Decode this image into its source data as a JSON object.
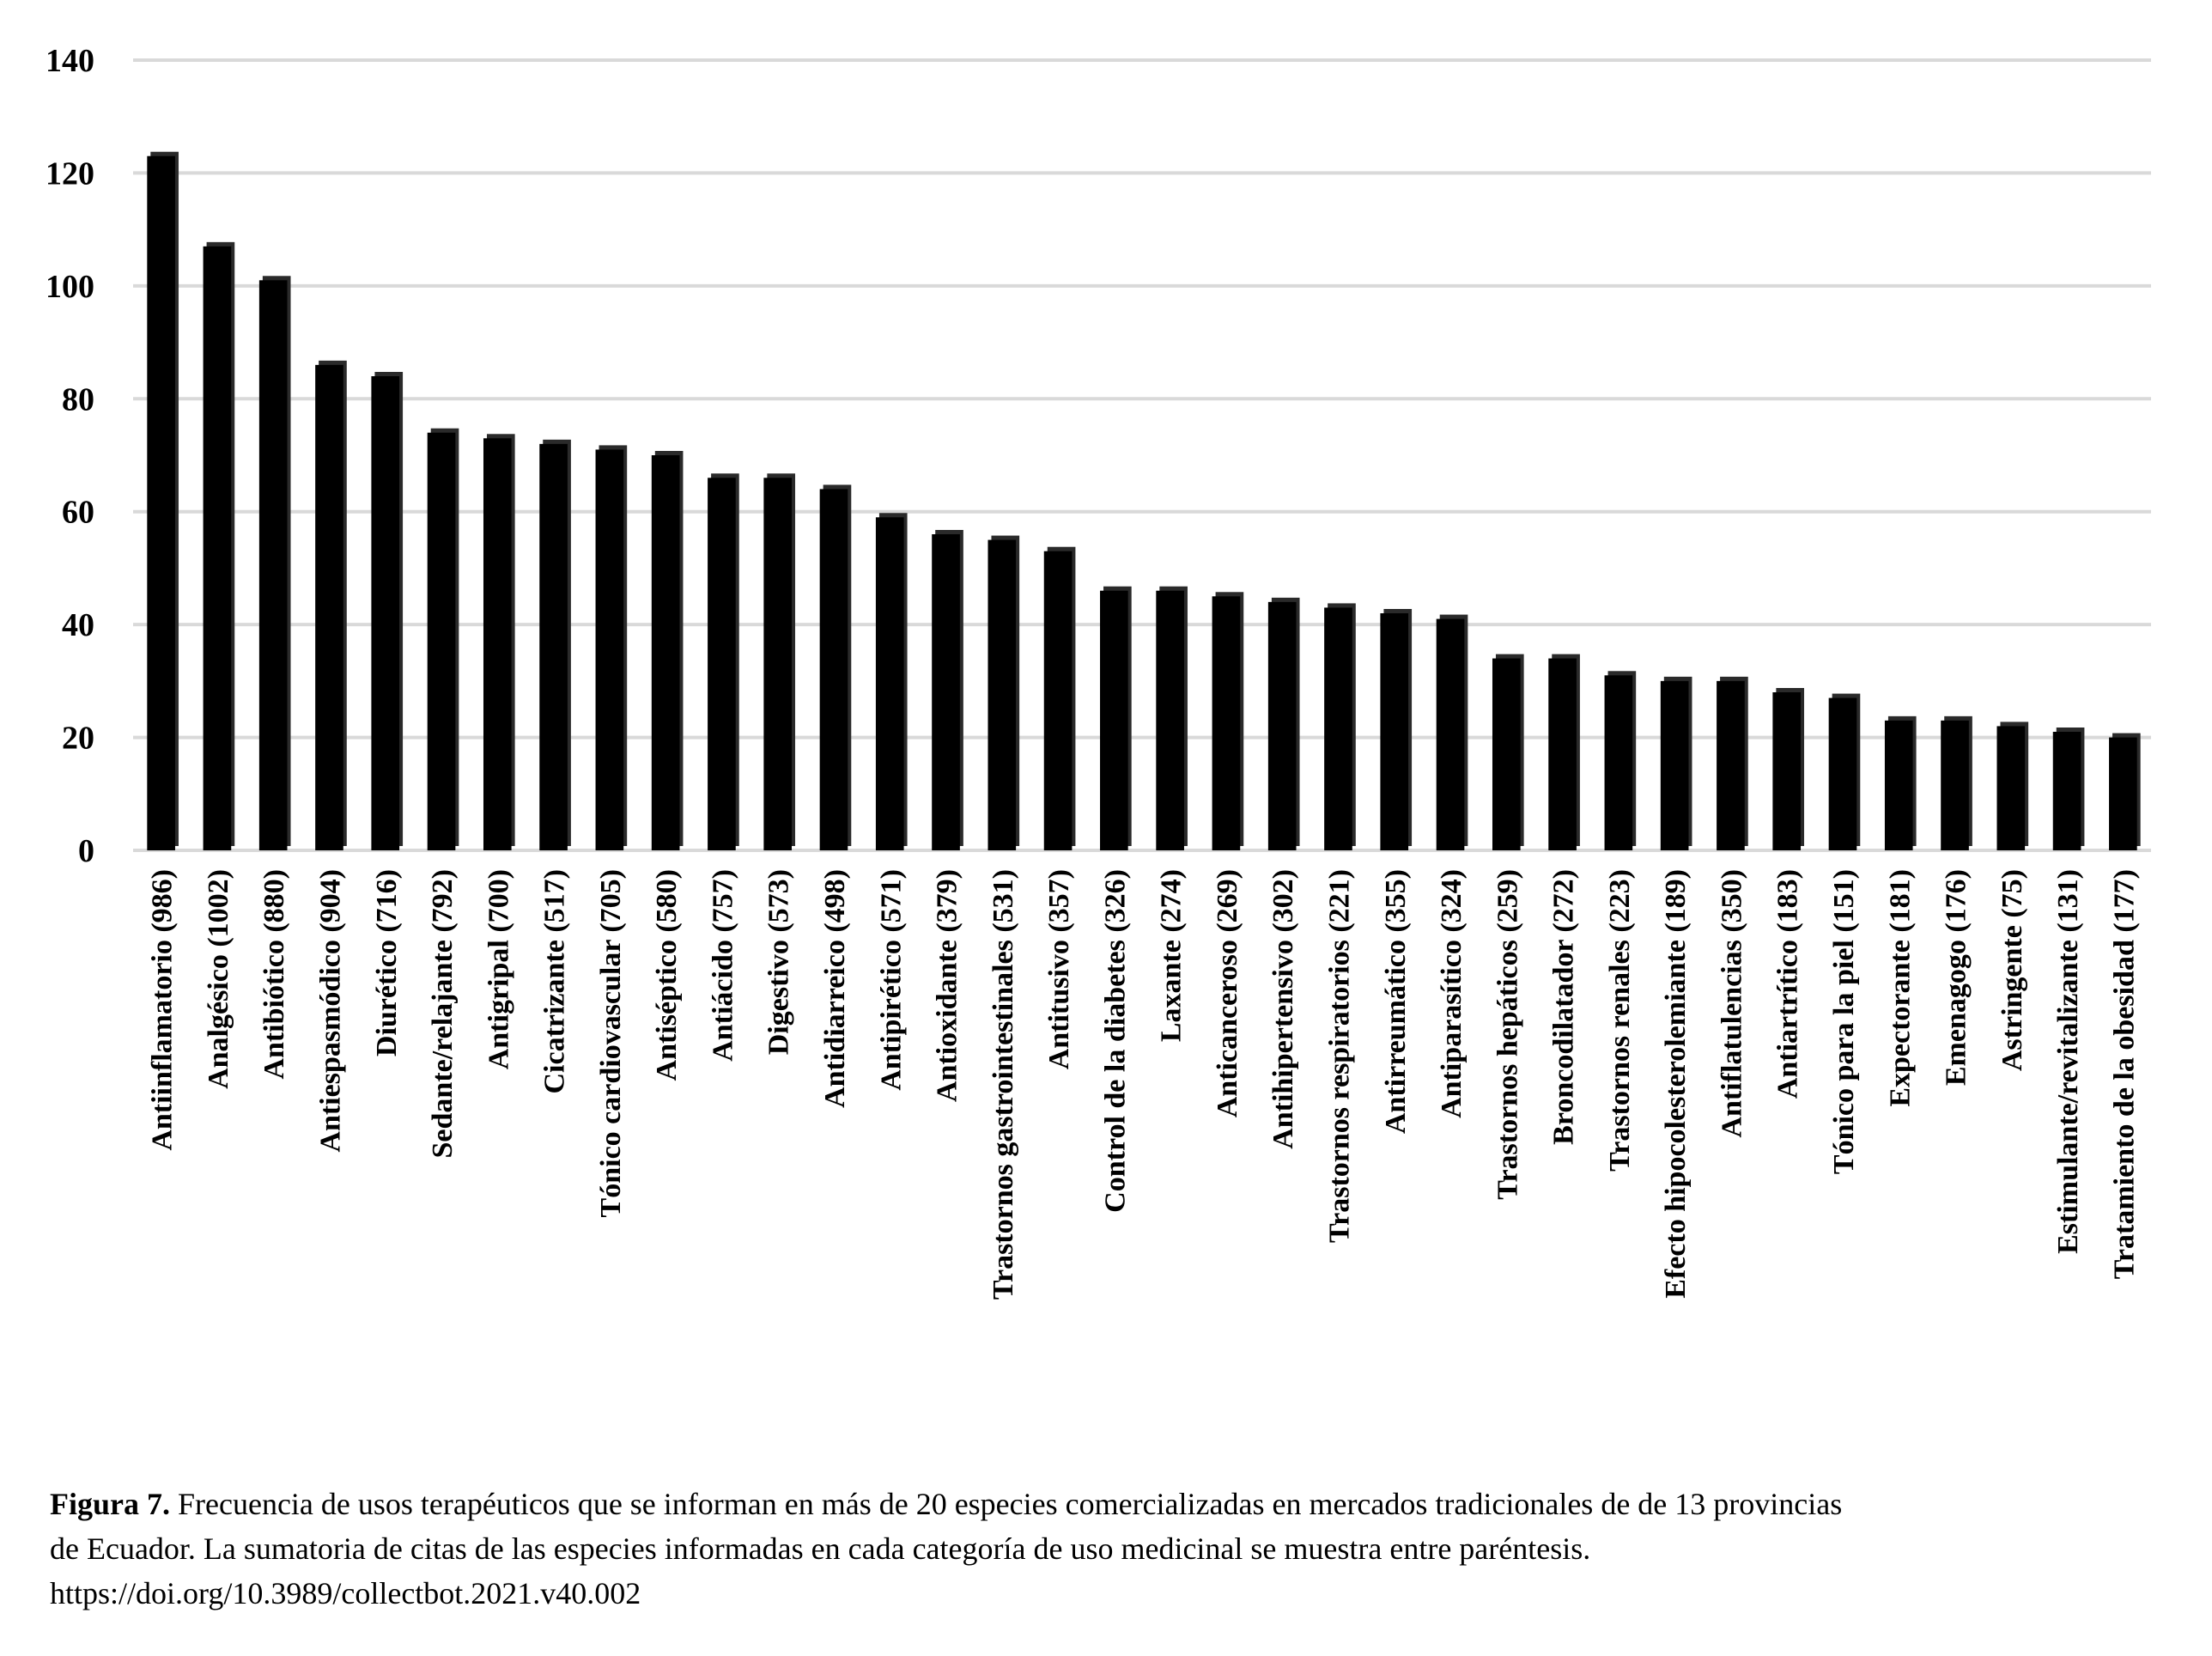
{
  "chart_data": {
    "type": "bar",
    "title": "",
    "xlabel": "",
    "ylabel": "",
    "ylim": [
      0,
      140
    ],
    "yticks": [
      0,
      20,
      40,
      60,
      80,
      100,
      120,
      140
    ],
    "grid": true,
    "legend": "none",
    "bar_color": "#000000",
    "grid_color": "#d9d9d9",
    "categories": [
      "Antiinflamatorio (986)",
      "Analgésico (1002)",
      "Antibiótico (880)",
      "Antiespasmódico (904)",
      "Diurético (716)",
      "Sedante/relajante (792)",
      "Antigripal (700)",
      "Cicatrizante (517)",
      "Tónico cardiovascular (705)",
      "Antiséptico (580)",
      "Antiácido (757)",
      "Digestivo (573)",
      "Antidiarreico (498)",
      "Antipirético (571)",
      "Antioxidante (379)",
      "Trastornos gastrointestinales (531)",
      "Antitusivo (357)",
      "Control de la diabetes (326)",
      "Laxante (274)",
      "Anticanceroso (269)",
      "Antihipertensivo (302)",
      "Trastornos respiratorios (221)",
      "Antirreumático (355)",
      "Antiparasítico (324)",
      "Trastornos hepáticos (259)",
      "Broncodilatador (272)",
      "Trastornos renales (223)",
      "Efecto hipocolesterolemiante (189)",
      "Antiflatulencias (350)",
      "Antiartrítico (183)",
      "Tónico para la piel (151)",
      "Expectorante (181)",
      "Emenagogo (176)",
      "Astringente (75)",
      "Estimulante/revitalizante (131)",
      "Tratamiento de la obesidad (177)"
    ],
    "values": [
      123,
      107,
      101,
      86,
      84,
      74,
      73,
      72,
      71,
      70,
      66,
      66,
      64,
      59,
      56,
      55,
      53,
      46,
      46,
      45,
      44,
      43,
      42,
      41,
      34,
      34,
      31,
      30,
      30,
      28,
      27,
      23,
      23,
      22,
      21,
      20
    ]
  },
  "caption": {
    "lead": "Figura 7.",
    "line1": " Frecuencia de usos terapéuticos que se informan en más de 20 especies comercializadas en mercados tradicionales de de 13 provincias",
    "line2": "de Ecuador. La sumatoria de citas de las especies informadas en cada categoría de uso medicinal se muestra entre paréntesis.",
    "line3": "https://doi.org/10.3989/collectbot.2021.v40.002"
  }
}
